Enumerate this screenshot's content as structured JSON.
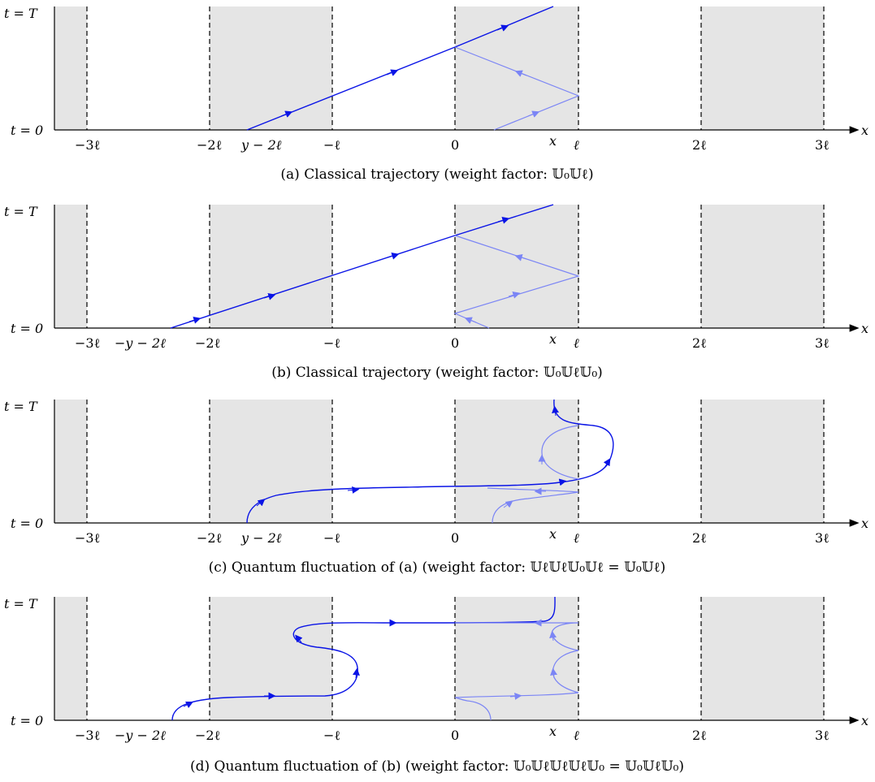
{
  "colors": {
    "shade": "#e5e5e5",
    "main_path": "#0a14e6",
    "reflected_path": "#7b85f5",
    "axis": "#000000"
  },
  "axis": {
    "time_top_label": "t = T",
    "time_bottom_label": "t = 0",
    "x_axis_label": "x",
    "x_label": "x",
    "ell_label": "ℓ"
  },
  "panels": [
    {
      "id": "a",
      "caption": "(a) Classical trajectory (weight factor: 𝕌₀𝕌ℓ)",
      "tick_labels": [
        "−3ℓ",
        "−2ℓ",
        "y − 2ℓ",
        "−ℓ",
        "0",
        "x",
        "ℓ",
        "2ℓ",
        "3ℓ"
      ]
    },
    {
      "id": "b",
      "caption": "(b) Classical trajectory (weight factor: 𝕌₀𝕌ℓ𝕌₀)",
      "tick_labels": [
        "−3ℓ",
        "−y − 2ℓ",
        "−2ℓ",
        "−ℓ",
        "0",
        "x",
        "ℓ",
        "2ℓ",
        "3ℓ"
      ]
    },
    {
      "id": "c",
      "caption": "(c) Quantum fluctuation of (a) (weight factor: 𝕌ℓ𝕌ℓ𝕌₀𝕌ℓ = 𝕌₀𝕌ℓ)",
      "tick_labels": [
        "−3ℓ",
        "−2ℓ",
        "y − 2ℓ",
        "−ℓ",
        "0",
        "x",
        "ℓ",
        "2ℓ",
        "3ℓ"
      ]
    },
    {
      "id": "d",
      "caption": "(d) Quantum fluctuation of (b) (weight factor: 𝕌₀𝕌ℓ𝕌ℓ𝕌ℓ𝕌₀ = 𝕌₀𝕌ℓ𝕌₀)",
      "tick_labels": [
        "−3ℓ",
        "−y − 2ℓ",
        "−2ℓ",
        "−ℓ",
        "0",
        "x",
        "ℓ",
        "2ℓ",
        "3ℓ"
      ]
    }
  ]
}
